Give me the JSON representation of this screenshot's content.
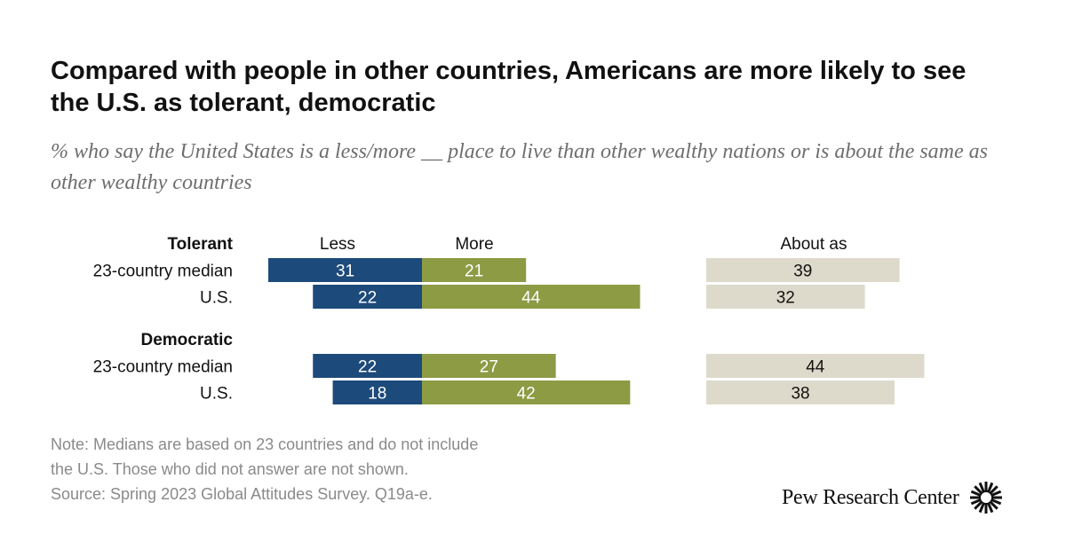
{
  "title": "Compared with people in other countries, Americans are more likely to see the U.S. as tolerant, democratic",
  "subtitle": "% who say the United States is a less/more __ place to live than other wealthy nations or is about the same as other wealthy countries",
  "chart_data": {
    "type": "bar",
    "orientation": "horizontal",
    "stacking": "diverging",
    "column_headers": {
      "less": "Less",
      "more": "More",
      "about": "About as"
    },
    "colors": {
      "less": "#1c4a7a",
      "more": "#8c9b44",
      "about": "#dedacb"
    },
    "groups": [
      {
        "label": "Tolerant",
        "rows": [
          {
            "label": "23-country median",
            "less": 31,
            "more": 21,
            "about": 39
          },
          {
            "label": "U.S.",
            "less": 22,
            "more": 44,
            "about": 32
          }
        ]
      },
      {
        "label": "Democratic",
        "rows": [
          {
            "label": "23-country median",
            "less": 22,
            "more": 27,
            "about": 44
          },
          {
            "label": "U.S.",
            "less": 18,
            "more": 42,
            "about": 38
          }
        ]
      }
    ]
  },
  "notes": [
    "Note: Medians are based on 23 countries and do not include",
    "the U.S. Those who did not answer are not shown.",
    "Source: Spring 2023 Global Attitudes Survey. Q19a-e."
  ],
  "logo": {
    "text": "Pew Research Center"
  }
}
